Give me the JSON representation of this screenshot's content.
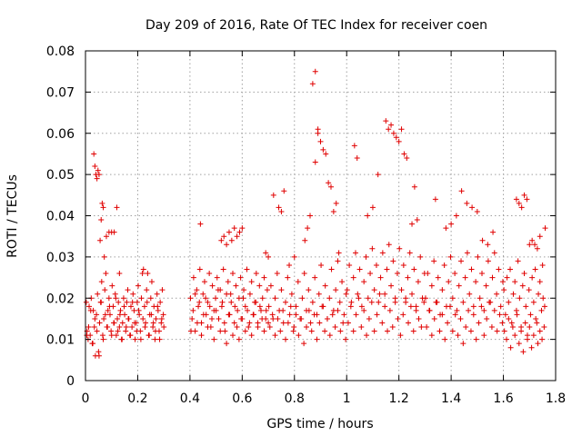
{
  "chart_data": {
    "type": "scatter",
    "title": "Day 209 of 2016, Rate Of TEC Index for receiver coen",
    "xlabel": "GPS time / hours",
    "ylabel": "ROTI / TECUs",
    "xlim": [
      0,
      1.8
    ],
    "ylim": [
      0,
      0.08
    ],
    "xticks": [
      0,
      0.2,
      0.4,
      0.6,
      0.8,
      1,
      1.2,
      1.4,
      1.6,
      1.8
    ],
    "xtick_labels": [
      "0",
      "0.2",
      "0.4",
      "0.6",
      "0.8",
      "1",
      "1.2",
      "1.4",
      "1.6",
      "1.8"
    ],
    "yticks": [
      0,
      0.01,
      0.02,
      0.03,
      0.04,
      0.05,
      0.06,
      0.07,
      0.08
    ],
    "ytick_labels": [
      "0",
      "0.01",
      "0.02",
      "0.03",
      "0.04",
      "0.05",
      "0.06",
      "0.07",
      "0.08"
    ],
    "grid": true,
    "marker": "+",
    "color": "#e00000",
    "series": [
      {
        "name": "ROTI",
        "x": [
          0.003,
          0.006,
          0.01,
          0.014,
          0.018,
          0.022,
          0.026,
          0.03,
          0.034,
          0.038,
          0.042,
          0.046,
          0.05,
          0.054,
          0.058,
          0.062,
          0.066,
          0.07,
          0.074,
          0.078,
          0.082,
          0.086,
          0.09,
          0.094,
          0.098,
          0.102,
          0.106,
          0.11,
          0.114,
          0.118,
          0.122,
          0.126,
          0.13,
          0.134,
          0.138,
          0.142,
          0.146,
          0.15,
          0.154,
          0.158,
          0.162,
          0.166,
          0.17,
          0.174,
          0.178,
          0.182,
          0.186,
          0.19,
          0.194,
          0.198,
          0.202,
          0.206,
          0.21,
          0.214,
          0.218,
          0.222,
          0.226,
          0.23,
          0.234,
          0.238,
          0.242,
          0.246,
          0.25,
          0.254,
          0.258,
          0.262,
          0.266,
          0.27,
          0.274,
          0.278,
          0.282,
          0.286,
          0.29,
          0.294,
          0.298,
          0.005,
          0.012,
          0.02,
          0.028,
          0.036,
          0.044,
          0.052,
          0.06,
          0.068,
          0.076,
          0.084,
          0.092,
          0.1,
          0.108,
          0.116,
          0.124,
          0.132,
          0.14,
          0.148,
          0.156,
          0.164,
          0.172,
          0.18,
          0.188,
          0.196,
          0.204,
          0.212,
          0.22,
          0.228,
          0.236,
          0.244,
          0.252,
          0.26,
          0.268,
          0.276,
          0.284,
          0.292,
          0.3,
          0.032,
          0.036,
          0.04,
          0.044,
          0.048,
          0.052,
          0.056,
          0.06,
          0.064,
          0.068,
          0.072,
          0.08,
          0.09,
          0.1,
          0.11,
          0.12,
          0.13,
          0.402,
          0.408,
          0.414,
          0.42,
          0.426,
          0.432,
          0.438,
          0.444,
          0.45,
          0.456,
          0.462,
          0.468,
          0.474,
          0.48,
          0.486,
          0.492,
          0.498,
          0.504,
          0.51,
          0.516,
          0.522,
          0.528,
          0.534,
          0.54,
          0.546,
          0.552,
          0.558,
          0.564,
          0.57,
          0.576,
          0.582,
          0.588,
          0.594,
          0.6,
          0.606,
          0.612,
          0.618,
          0.624,
          0.63,
          0.636,
          0.642,
          0.648,
          0.654,
          0.66,
          0.666,
          0.672,
          0.678,
          0.684,
          0.69,
          0.696,
          0.404,
          0.412,
          0.42,
          0.428,
          0.436,
          0.444,
          0.452,
          0.46,
          0.468,
          0.476,
          0.484,
          0.492,
          0.5,
          0.508,
          0.516,
          0.524,
          0.532,
          0.54,
          0.548,
          0.556,
          0.564,
          0.572,
          0.58,
          0.588,
          0.596,
          0.604,
          0.612,
          0.62,
          0.628,
          0.636,
          0.644,
          0.652,
          0.66,
          0.668,
          0.676,
          0.684,
          0.692,
          0.7,
          0.52,
          0.53,
          0.54,
          0.55,
          0.56,
          0.57,
          0.58,
          0.59,
          0.6,
          0.44,
          0.69,
          0.7,
          0.74,
          0.75,
          0.72,
          0.76,
          0.78,
          0.8,
          0.702,
          0.71,
          0.718,
          0.726,
          0.734,
          0.742,
          0.75,
          0.758,
          0.766,
          0.774,
          0.782,
          0.79,
          0.798,
          0.806,
          0.814,
          0.822,
          0.83,
          0.838,
          0.846,
          0.854,
          0.862,
          0.87,
          0.878,
          0.886,
          0.894,
          0.902,
          0.91,
          0.918,
          0.926,
          0.934,
          0.942,
          0.95,
          0.958,
          0.966,
          0.974,
          0.982,
          0.99,
          0.998,
          0.706,
          0.716,
          0.726,
          0.736,
          0.746,
          0.756,
          0.766,
          0.776,
          0.786,
          0.796,
          0.806,
          0.816,
          0.826,
          0.836,
          0.846,
          0.856,
          0.866,
          0.876,
          0.886,
          0.896,
          0.906,
          0.916,
          0.926,
          0.936,
          0.946,
          0.956,
          0.966,
          0.976,
          0.986,
          0.996,
          0.87,
          0.88,
          0.89,
          0.9,
          0.91,
          0.92,
          0.93,
          0.94,
          0.95,
          0.86,
          0.85,
          0.84,
          0.96,
          0.97,
          0.88,
          0.89,
          1.002,
          1.01,
          1.018,
          1.026,
          1.034,
          1.042,
          1.05,
          1.058,
          1.066,
          1.074,
          1.082,
          1.09,
          1.098,
          1.106,
          1.114,
          1.122,
          1.13,
          1.138,
          1.146,
          1.154,
          1.162,
          1.17,
          1.178,
          1.186,
          1.194,
          1.202,
          1.21,
          1.218,
          1.226,
          1.234,
          1.242,
          1.25,
          1.258,
          1.266,
          1.274,
          1.282,
          1.29,
          1.298,
          1.006,
          1.016,
          1.026,
          1.036,
          1.046,
          1.056,
          1.066,
          1.076,
          1.086,
          1.096,
          1.106,
          1.116,
          1.126,
          1.136,
          1.146,
          1.156,
          1.166,
          1.176,
          1.186,
          1.196,
          1.206,
          1.216,
          1.226,
          1.236,
          1.246,
          1.256,
          1.266,
          1.276,
          1.286,
          1.296,
          1.03,
          1.04,
          1.15,
          1.16,
          1.17,
          1.18,
          1.19,
          1.2,
          1.21,
          1.22,
          1.23,
          1.26,
          1.27,
          1.1,
          1.12,
          1.08,
          1.25,
          1.302,
          1.31,
          1.318,
          1.326,
          1.334,
          1.342,
          1.35,
          1.358,
          1.366,
          1.374,
          1.382,
          1.39,
          1.398,
          1.406,
          1.414,
          1.422,
          1.43,
          1.438,
          1.446,
          1.454,
          1.462,
          1.47,
          1.478,
          1.486,
          1.494,
          1.502,
          1.51,
          1.518,
          1.526,
          1.534,
          1.542,
          1.55,
          1.558,
          1.566,
          1.574,
          1.582,
          1.59,
          1.598,
          1.306,
          1.316,
          1.326,
          1.336,
          1.346,
          1.356,
          1.366,
          1.376,
          1.386,
          1.396,
          1.406,
          1.416,
          1.426,
          1.436,
          1.446,
          1.456,
          1.466,
          1.476,
          1.486,
          1.496,
          1.506,
          1.516,
          1.526,
          1.536,
          1.546,
          1.556,
          1.566,
          1.576,
          1.586,
          1.596,
          1.34,
          1.4,
          1.42,
          1.44,
          1.46,
          1.48,
          1.5,
          1.52,
          1.54,
          1.56,
          1.38,
          1.602,
          1.608,
          1.614,
          1.62,
          1.626,
          1.632,
          1.638,
          1.644,
          1.65,
          1.656,
          1.662,
          1.668,
          1.674,
          1.68,
          1.686,
          1.692,
          1.698,
          1.704,
          1.71,
          1.716,
          1.722,
          1.728,
          1.734,
          1.74,
          1.746,
          1.752,
          1.758,
          1.604,
          1.612,
          1.62,
          1.628,
          1.636,
          1.644,
          1.652,
          1.66,
          1.668,
          1.676,
          1.684,
          1.692,
          1.7,
          1.708,
          1.716,
          1.724,
          1.732,
          1.74,
          1.748,
          1.756,
          1.65,
          1.66,
          1.67,
          1.68,
          1.69,
          1.7,
          1.71,
          1.72,
          1.73,
          1.74,
          1.76,
          1.75
        ],
        "y": [
          0.019,
          0.012,
          0.01,
          0.018,
          0.011,
          0.02,
          0.009,
          0.017,
          0.013,
          0.006,
          0.016,
          0.021,
          0.007,
          0.014,
          0.019,
          0.024,
          0.011,
          0.015,
          0.022,
          0.026,
          0.013,
          0.017,
          0.02,
          0.016,
          0.012,
          0.023,
          0.018,
          0.014,
          0.021,
          0.011,
          0.015,
          0.019,
          0.013,
          0.017,
          0.01,
          0.014,
          0.02,
          0.016,
          0.012,
          0.019,
          0.022,
          0.015,
          0.011,
          0.018,
          0.013,
          0.021,
          0.017,
          0.01,
          0.014,
          0.019,
          0.023,
          0.016,
          0.012,
          0.02,
          0.026,
          0.027,
          0.018,
          0.014,
          0.022,
          0.026,
          0.011,
          0.016,
          0.02,
          0.024,
          0.013,
          0.018,
          0.01,
          0.015,
          0.021,
          0.017,
          0.012,
          0.019,
          0.014,
          0.022,
          0.016,
          0.011,
          0.013,
          0.017,
          0.009,
          0.015,
          0.012,
          0.006,
          0.019,
          0.01,
          0.016,
          0.013,
          0.018,
          0.011,
          0.014,
          0.02,
          0.012,
          0.016,
          0.01,
          0.018,
          0.013,
          0.015,
          0.011,
          0.019,
          0.014,
          0.012,
          0.017,
          0.01,
          0.015,
          0.013,
          0.019,
          0.011,
          0.016,
          0.014,
          0.012,
          0.018,
          0.01,
          0.015,
          0.013,
          0.055,
          0.052,
          0.05,
          0.049,
          0.051,
          0.05,
          0.034,
          0.039,
          0.043,
          0.042,
          0.03,
          0.035,
          0.036,
          0.036,
          0.036,
          0.042,
          0.026,
          0.02,
          0.015,
          0.025,
          0.012,
          0.022,
          0.018,
          0.027,
          0.014,
          0.021,
          0.024,
          0.016,
          0.019,
          0.026,
          0.013,
          0.023,
          0.017,
          0.02,
          0.025,
          0.015,
          0.022,
          0.018,
          0.027,
          0.012,
          0.021,
          0.024,
          0.016,
          0.019,
          0.026,
          0.014,
          0.023,
          0.017,
          0.02,
          0.025,
          0.015,
          0.022,
          0.018,
          0.027,
          0.013,
          0.021,
          0.024,
          0.016,
          0.019,
          0.026,
          0.014,
          0.023,
          0.017,
          0.02,
          0.025,
          0.015,
          0.022,
          0.012,
          0.017,
          0.021,
          0.014,
          0.019,
          0.011,
          0.016,
          0.02,
          0.013,
          0.018,
          0.015,
          0.01,
          0.017,
          0.022,
          0.012,
          0.019,
          0.014,
          0.009,
          0.016,
          0.021,
          0.011,
          0.018,
          0.013,
          0.01,
          0.015,
          0.02,
          0.012,
          0.017,
          0.014,
          0.011,
          0.016,
          0.019,
          0.013,
          0.018,
          0.015,
          0.012,
          0.017,
          0.014,
          0.034,
          0.035,
          0.033,
          0.036,
          0.034,
          0.037,
          0.035,
          0.036,
          0.037,
          0.038,
          0.031,
          0.03,
          0.042,
          0.041,
          0.045,
          0.046,
          0.028,
          0.03,
          0.018,
          0.023,
          0.015,
          0.02,
          0.026,
          0.017,
          0.022,
          0.014,
          0.019,
          0.025,
          0.016,
          0.021,
          0.013,
          0.018,
          0.024,
          0.015,
          0.02,
          0.026,
          0.017,
          0.022,
          0.014,
          0.019,
          0.025,
          0.016,
          0.021,
          0.028,
          0.018,
          0.023,
          0.015,
          0.02,
          0.027,
          0.017,
          0.022,
          0.029,
          0.019,
          0.024,
          0.016,
          0.021,
          0.013,
          0.016,
          0.011,
          0.015,
          0.012,
          0.017,
          0.01,
          0.014,
          0.018,
          0.012,
          0.016,
          0.011,
          0.015,
          0.009,
          0.013,
          0.017,
          0.012,
          0.016,
          0.01,
          0.014,
          0.018,
          0.012,
          0.015,
          0.011,
          0.016,
          0.013,
          0.017,
          0.012,
          0.014,
          0.01,
          0.072,
          0.075,
          0.061,
          0.058,
          0.056,
          0.055,
          0.048,
          0.047,
          0.041,
          0.04,
          0.037,
          0.034,
          0.043,
          0.031,
          0.053,
          0.06,
          0.022,
          0.028,
          0.019,
          0.025,
          0.031,
          0.021,
          0.027,
          0.018,
          0.024,
          0.03,
          0.02,
          0.026,
          0.032,
          0.022,
          0.028,
          0.019,
          0.025,
          0.031,
          0.021,
          0.027,
          0.033,
          0.023,
          0.029,
          0.02,
          0.026,
          0.032,
          0.022,
          0.028,
          0.019,
          0.025,
          0.031,
          0.021,
          0.027,
          0.018,
          0.024,
          0.03,
          0.02,
          0.026,
          0.014,
          0.018,
          0.012,
          0.016,
          0.02,
          0.013,
          0.017,
          0.011,
          0.015,
          0.019,
          0.012,
          0.016,
          0.021,
          0.014,
          0.018,
          0.012,
          0.017,
          0.013,
          0.019,
          0.015,
          0.011,
          0.016,
          0.02,
          0.014,
          0.018,
          0.012,
          0.017,
          0.015,
          0.013,
          0.019,
          0.057,
          0.054,
          0.063,
          0.061,
          0.062,
          0.06,
          0.059,
          0.058,
          0.061,
          0.055,
          0.054,
          0.047,
          0.039,
          0.042,
          0.05,
          0.04,
          0.038,
          0.02,
          0.026,
          0.017,
          0.023,
          0.029,
          0.019,
          0.025,
          0.016,
          0.022,
          0.028,
          0.018,
          0.024,
          0.03,
          0.02,
          0.026,
          0.017,
          0.023,
          0.029,
          0.019,
          0.025,
          0.031,
          0.021,
          0.027,
          0.018,
          0.024,
          0.03,
          0.02,
          0.026,
          0.017,
          0.023,
          0.029,
          0.019,
          0.025,
          0.031,
          0.021,
          0.027,
          0.018,
          0.024,
          0.013,
          0.017,
          0.011,
          0.015,
          0.019,
          0.012,
          0.016,
          0.01,
          0.014,
          0.018,
          0.012,
          0.016,
          0.011,
          0.015,
          0.009,
          0.013,
          0.017,
          0.012,
          0.016,
          0.01,
          0.014,
          0.018,
          0.011,
          0.015,
          0.019,
          0.013,
          0.017,
          0.012,
          0.016,
          0.014,
          0.044,
          0.038,
          0.04,
          0.046,
          0.043,
          0.042,
          0.041,
          0.034,
          0.033,
          0.036,
          0.037,
          0.022,
          0.016,
          0.025,
          0.019,
          0.027,
          0.014,
          0.021,
          0.024,
          0.017,
          0.029,
          0.02,
          0.013,
          0.023,
          0.026,
          0.018,
          0.011,
          0.022,
          0.016,
          0.025,
          0.019,
          0.027,
          0.014,
          0.021,
          0.024,
          0.017,
          0.02,
          0.018,
          0.012,
          0.01,
          0.015,
          0.008,
          0.013,
          0.011,
          0.016,
          0.009,
          0.012,
          0.007,
          0.014,
          0.01,
          0.013,
          0.008,
          0.011,
          0.015,
          0.009,
          0.012,
          0.01,
          0.013,
          0.044,
          0.043,
          0.042,
          0.045,
          0.044,
          0.033,
          0.034,
          0.033,
          0.032,
          0.035,
          0.037,
          0.028
        ]
      }
    ]
  }
}
